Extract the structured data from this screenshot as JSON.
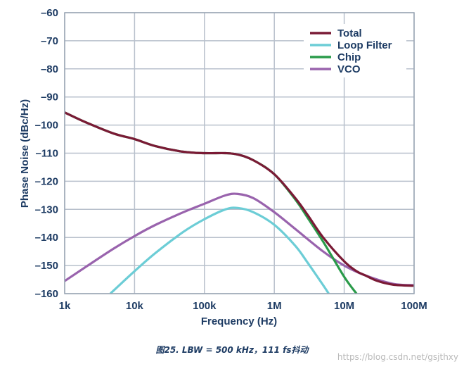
{
  "chart_data": {
    "type": "line",
    "xscale": "log",
    "xlabel": "Frequency (Hz)",
    "ylabel": "Phase Noise (dBc/Hz)",
    "xlim": [
      1000,
      100000000
    ],
    "ylim": [
      -160,
      -60
    ],
    "x_ticks": [
      {
        "value": 1000,
        "label": "1k"
      },
      {
        "value": 10000,
        "label": "10k"
      },
      {
        "value": 100000,
        "label": "100k"
      },
      {
        "value": 1000000,
        "label": "1M"
      },
      {
        "value": 10000000,
        "label": "10M"
      },
      {
        "value": 100000000,
        "label": "100M"
      }
    ],
    "y_ticks": [
      {
        "value": -60,
        "label": "–60"
      },
      {
        "value": -70,
        "label": "–70"
      },
      {
        "value": -80,
        "label": "–80"
      },
      {
        "value": -90,
        "label": "–90"
      },
      {
        "value": -100,
        "label": "–100"
      },
      {
        "value": -110,
        "label": "–110"
      },
      {
        "value": -120,
        "label": "–120"
      },
      {
        "value": -130,
        "label": "–130"
      },
      {
        "value": -140,
        "label": "–140"
      },
      {
        "value": -150,
        "label": "–150"
      },
      {
        "value": -160,
        "label": "–160"
      }
    ],
    "grid": true,
    "legend_position": "top-right",
    "series": [
      {
        "name": "Total",
        "color": "#7a1a35",
        "x": [
          1000,
          2000,
          5000,
          10000,
          20000,
          50000,
          100000,
          200000,
          300000,
          500000,
          1000000,
          2000000,
          3000000,
          5000000,
          10000000,
          15000000,
          20000000,
          30000000,
          50000000,
          100000000
        ],
        "y": [
          -95.5,
          -99,
          -103,
          -105,
          -107.5,
          -109.5,
          -110,
          -110,
          -110.5,
          -112.5,
          -117.5,
          -126,
          -132,
          -140,
          -148.5,
          -152,
          -153.5,
          -155.5,
          -156.8,
          -157.2
        ]
      },
      {
        "name": "Loop Filter",
        "color": "#6ccdd6",
        "x": [
          4500,
          10000,
          20000,
          50000,
          100000,
          200000,
          300000,
          500000,
          1000000,
          2000000,
          3000000,
          5000000,
          6000000
        ],
        "y": [
          -160,
          -152,
          -145.5,
          -138,
          -133.5,
          -130,
          -129.5,
          -131,
          -135.5,
          -143,
          -149,
          -157,
          -160
        ]
      },
      {
        "name": "Chip",
        "color": "#2a9b4a",
        "x": [
          1000,
          2000,
          5000,
          10000,
          20000,
          50000,
          100000,
          200000,
          300000,
          500000,
          1000000,
          2000000,
          3000000,
          5000000,
          10000000,
          15000000
        ],
        "y": [
          -95.5,
          -99,
          -103,
          -105,
          -107.5,
          -109.5,
          -110,
          -110,
          -110.5,
          -112.5,
          -117.5,
          -126.5,
          -133,
          -141.5,
          -154,
          -160
        ]
      },
      {
        "name": "VCO",
        "color": "#9963ad",
        "x": [
          1000,
          2000,
          5000,
          10000,
          20000,
          50000,
          100000,
          200000,
          300000,
          500000,
          1000000,
          2000000,
          5000000,
          10000000,
          20000000,
          50000000,
          100000000
        ],
        "y": [
          -155.5,
          -150.5,
          -144,
          -139.5,
          -135.5,
          -131,
          -128,
          -125,
          -124.5,
          -126,
          -131,
          -137,
          -145,
          -150,
          -153.5,
          -156.5,
          -157
        ]
      }
    ]
  },
  "caption": "图25. LBW = 500 kHz，111 fs抖动",
  "watermark": "https://blog.csdn.net/gsjthxy"
}
